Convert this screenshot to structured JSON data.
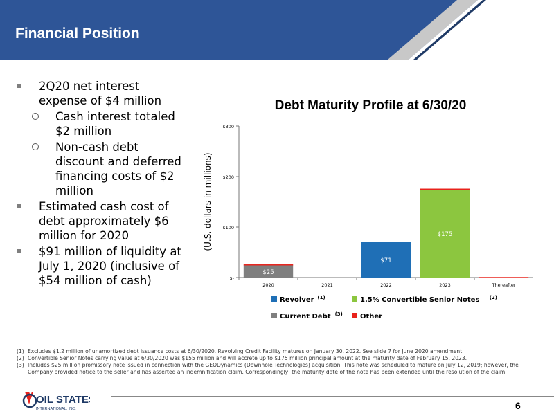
{
  "header": {
    "title": "Financial Position"
  },
  "bullets": [
    {
      "text": "2Q20 net interest expense of $4 million",
      "sub": [
        "Cash interest totaled $2 million",
        "Non-cash debt discount and deferred financing costs of $2 million"
      ]
    },
    {
      "text": "Estimated cash cost of debt approximately $6 million for 2020",
      "sub": []
    },
    {
      "text": "$91 million of liquidity at July 1, 2020 (inclusive of $54 million of cash)",
      "sub": []
    }
  ],
  "chart_data": {
    "type": "bar",
    "stacked": true,
    "title": "Debt Maturity Profile at 6/30/20",
    "ylabel": "(U.S. dollars in millions)",
    "xlabel": "",
    "ylim": [
      0,
      300
    ],
    "y_ticks": [
      "$-",
      "$100",
      "$200",
      "$300"
    ],
    "categories": [
      "2020",
      "2021",
      "2022",
      "2023",
      "Thereafter"
    ],
    "series": [
      {
        "name": "Revolver",
        "note": "(1)",
        "color": "#1f6fb6",
        "values": [
          0,
          0,
          71,
          0,
          0
        ]
      },
      {
        "name": "1.5% Convertible Senior Notes",
        "note": "(2)",
        "color": "#8cc63f",
        "values": [
          0,
          0,
          0,
          175,
          0
        ]
      },
      {
        "name": "Current Debt",
        "note": "(3)",
        "color": "#7f7f7f",
        "values": [
          25,
          0,
          0,
          0,
          0
        ]
      },
      {
        "name": "Other",
        "note": "",
        "color": "#e8221b",
        "values": [
          1,
          0,
          0,
          1,
          1
        ]
      }
    ],
    "data_labels": [
      "$25",
      "",
      "$71",
      "$175",
      ""
    ],
    "grid": false,
    "legend_position": "bottom"
  },
  "footnotes": [
    {
      "num": "(1)",
      "text": "Excludes $1.2 million of unamortized debt issuance costs at 6/30/2020. Revolving Credit Facility matures on January 30, 2022. See slide 7 for June 2020 amendment."
    },
    {
      "num": "(2)",
      "text": "Convertible Senior Notes carrying value at 6/30/2020 was $155 million and will accrete up to $175 million principal amount at the maturity date of February 15, 2023."
    },
    {
      "num": "(3)",
      "text": "Includes $25 million promissory note issued in connection with the GEODynamics (Downhole Technologies) acquisition. This note was scheduled to mature on July 12, 2019; however, the Company provided notice to the seller and has asserted an indemnification claim. Correspondingly, the maturity date of the note has been extended until the resolution of the claim."
    }
  ],
  "logo": {
    "text": "OIL STATES",
    "subtext": "INTERNATIONAL, INC."
  },
  "footer": {
    "page_number": "6"
  },
  "colors": {
    "header_blue": "#2e5597",
    "header_dark": "#1f3a66",
    "accent_gray": "#9a9a9a"
  }
}
